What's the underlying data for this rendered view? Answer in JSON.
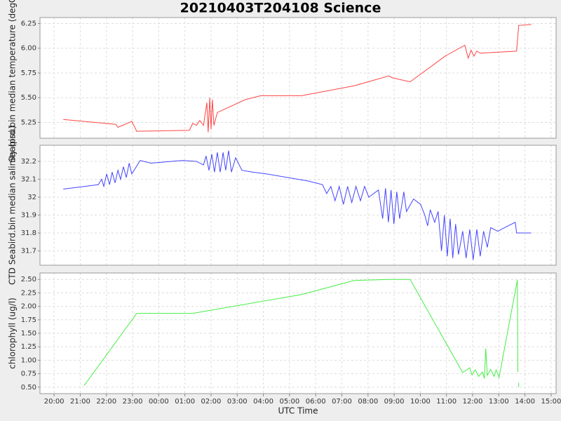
{
  "title": "20210403T204108 Science",
  "chart_data": [
    {
      "type": "line",
      "ylabel": "Seabird.bin median temperature (degC)",
      "color": "#ff4444",
      "ylim": [
        5.09,
        6.31
      ],
      "yticks": [
        5.25,
        {
          "value": 5.5,
          "label": "5.50"
        },
        5.75,
        {
          "value": 6,
          "label": "6.00"
        },
        6.25
      ],
      "grid": true,
      "x": [
        20.35,
        22.36,
        22.44,
        22.97,
        23.16,
        25.17,
        25.3,
        25.44,
        25.57,
        25.71,
        25.84,
        25.89,
        25.95,
        26.0,
        26.05,
        26.11,
        26.24,
        27.31,
        27.9,
        29.46,
        31.47,
        32.8,
        32.94,
        33.61,
        34.95,
        35.7,
        35.83,
        35.94,
        36.05,
        36.16,
        36.29,
        37.68,
        37.76,
        38.24
      ],
      "values": [
        5.28,
        5.23,
        5.2,
        5.26,
        5.16,
        5.17,
        5.24,
        5.22,
        5.27,
        5.22,
        5.45,
        5.15,
        5.5,
        5.18,
        5.48,
        5.22,
        5.35,
        5.48,
        5.52,
        5.52,
        5.62,
        5.72,
        5.7,
        5.66,
        5.92,
        6.03,
        5.9,
        5.98,
        5.92,
        5.97,
        5.95,
        5.97,
        6.23,
        6.24
      ]
    },
    {
      "type": "line",
      "ylabel": "CTD Seabird.bin median salinity (psu)",
      "color": "#4444ff",
      "ylim": [
        31.62,
        32.29
      ],
      "yticks": [
        31.7,
        31.8,
        31.9,
        32.0,
        32.1,
        32.2
      ],
      "grid": true,
      "x": [
        20.35,
        21.15,
        21.69,
        21.82,
        21.9,
        22.01,
        22.12,
        22.22,
        22.33,
        22.44,
        22.54,
        22.65,
        22.76,
        22.87,
        22.97,
        23.29,
        23.7,
        24.9,
        25.44,
        25.71,
        25.81,
        25.92,
        26.03,
        26.13,
        26.24,
        26.35,
        26.46,
        26.56,
        26.67,
        26.78,
        26.94,
        27.18,
        27.58,
        28.12,
        29.72,
        30.26,
        30.42,
        30.58,
        30.74,
        30.9,
        31.06,
        31.22,
        31.38,
        31.54,
        31.71,
        31.87,
        32.03,
        32.4,
        32.56,
        32.67,
        32.78,
        32.88,
        32.99,
        33.1,
        33.21,
        33.37,
        33.47,
        33.74,
        34.01,
        34.17,
        34.28,
        34.38,
        34.55,
        34.68,
        34.81,
        34.92,
        35.03,
        35.14,
        35.24,
        35.35,
        35.46,
        35.62,
        35.75,
        35.89,
        36.02,
        36.16,
        36.29,
        36.42,
        36.56,
        36.69,
        36.96,
        37.22,
        37.63,
        37.68,
        38.24
      ],
      "values": [
        32.045,
        32.06,
        32.07,
        32.1,
        32.06,
        32.13,
        32.07,
        32.14,
        32.08,
        32.15,
        32.1,
        32.17,
        32.11,
        32.19,
        32.13,
        32.205,
        32.19,
        32.205,
        32.2,
        32.18,
        32.23,
        32.15,
        32.24,
        32.14,
        32.25,
        32.14,
        32.25,
        32.15,
        32.26,
        32.14,
        32.22,
        32.15,
        32.14,
        32.13,
        32.09,
        32.07,
        32.02,
        32.06,
        31.98,
        32.06,
        31.96,
        32.06,
        31.97,
        32.06,
        31.98,
        32.06,
        32.0,
        32.04,
        31.88,
        32.05,
        31.86,
        32.04,
        31.85,
        32.03,
        31.88,
        32.03,
        31.92,
        31.99,
        31.96,
        31.9,
        31.84,
        31.93,
        31.86,
        31.92,
        31.7,
        31.9,
        31.67,
        31.88,
        31.66,
        31.85,
        31.68,
        31.81,
        31.66,
        31.82,
        31.65,
        31.82,
        31.67,
        31.81,
        31.72,
        31.83,
        31.81,
        31.83,
        31.86,
        31.8,
        31.8
      ]
    },
    {
      "type": "line",
      "ylabel": "chlorophyll (ug/l)",
      "color": "#44ee44",
      "xlabel": "UTC Time",
      "ylim": [
        0.38,
        2.62
      ],
      "yticks": [
        {
          "value": 0.5,
          "label": "0.50"
        },
        0.75,
        {
          "value": 1,
          "label": "1.00"
        },
        1.25,
        {
          "value": 1.5,
          "label": "1.50"
        },
        1.75,
        {
          "value": 2,
          "label": "2.00"
        },
        2.25,
        {
          "value": 2.5,
          "label": "2.50"
        }
      ],
      "grid": true,
      "xlim": [
        19.46,
        39.19
      ],
      "xticks": [
        {
          "value": 20,
          "label": "20:00"
        },
        {
          "value": 21,
          "label": "21:00"
        },
        {
          "value": 22,
          "label": "22:00"
        },
        {
          "value": 23,
          "label": "23:00"
        },
        {
          "value": 24,
          "label": "00:00"
        },
        {
          "value": 25,
          "label": "01:00"
        },
        {
          "value": 26,
          "label": "02:00"
        },
        {
          "value": 27,
          "label": "03:00"
        },
        {
          "value": 28,
          "label": "04:00"
        },
        {
          "value": 29,
          "label": "05:00"
        },
        {
          "value": 30,
          "label": "06:00"
        },
        {
          "value": 31,
          "label": "07:00"
        },
        {
          "value": 32,
          "label": "08:00"
        },
        {
          "value": 33,
          "label": "09:00"
        },
        {
          "value": 34,
          "label": "10:00"
        },
        {
          "value": 35,
          "label": "11:00"
        },
        {
          "value": 36,
          "label": "12:00"
        },
        {
          "value": 37,
          "label": "13:00"
        },
        {
          "value": 38,
          "label": "14:00"
        },
        {
          "value": 39,
          "label": "15:00"
        }
      ],
      "x": [
        21.15,
        23.16,
        25.3,
        29.46,
        31.47,
        32.8,
        33.61,
        35.62,
        35.89,
        35.97,
        36.1,
        36.23,
        36.37,
        36.45,
        36.5,
        36.56,
        36.69,
        36.82,
        36.9,
        37.01,
        37.71,
        37.73,
        37.74,
        37.76,
        37.76
      ],
      "values": [
        0.53,
        1.87,
        1.87,
        2.22,
        2.48,
        2.5,
        2.5,
        0.77,
        0.86,
        0.73,
        0.82,
        0.7,
        0.78,
        0.66,
        1.22,
        0.72,
        0.83,
        0.7,
        0.82,
        0.68,
        2.49,
        0.78,
        null,
        0.58,
        0.5
      ]
    }
  ]
}
